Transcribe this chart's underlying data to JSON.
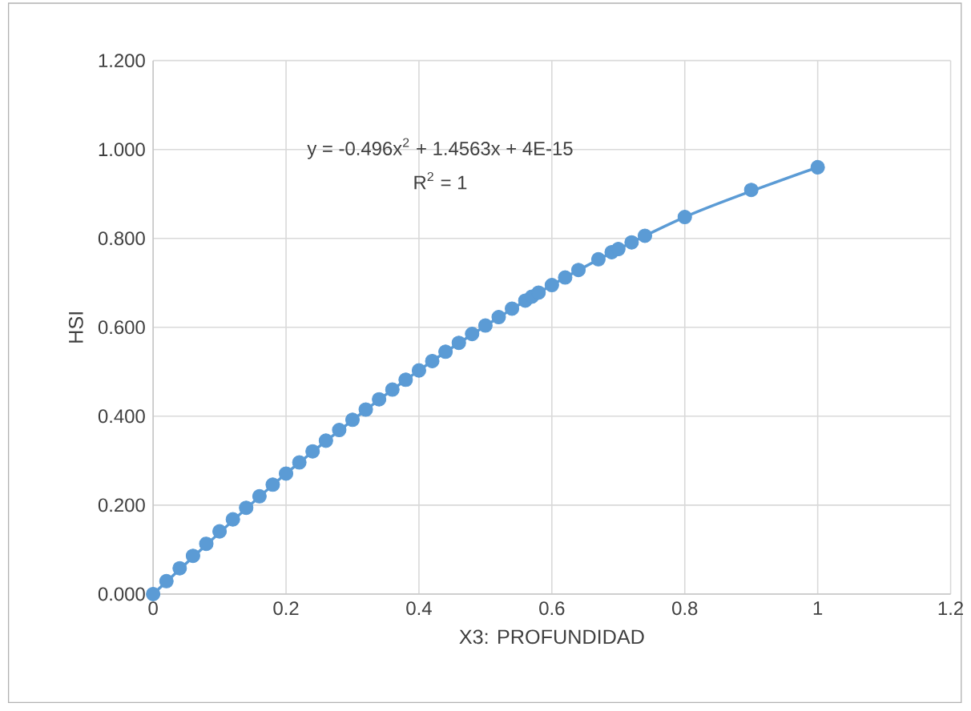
{
  "chart_data": {
    "type": "scatter",
    "xlabel": "X3: PROFUNDIDAD",
    "ylabel": "HSI",
    "xlim": [
      0,
      1.2
    ],
    "xticks": [
      0,
      0.2,
      0.4,
      0.6,
      0.8,
      1,
      1.2
    ],
    "ylim": [
      0,
      1.2
    ],
    "yticks": [
      {
        "value": 0,
        "label": "0.000"
      },
      {
        "value": 0.2,
        "label": "0.200"
      },
      {
        "value": 0.4,
        "label": "0.400"
      },
      {
        "value": 0.6,
        "label": "0.600"
      },
      {
        "value": 0.8,
        "label": "0.800"
      },
      {
        "value": 1,
        "label": "1.000"
      },
      {
        "value": 1.2,
        "label": "1.200"
      }
    ],
    "grid": true,
    "annotations": [
      "y = -0.496x$^{2}$ + 1.4563x + 4E-15",
      "R$^{2}$ = 1"
    ],
    "series": [
      {
        "color": "#5b9bd5",
        "marker": "circle",
        "x": [
          0,
          0.02,
          0.04,
          0.06,
          0.08,
          0.1,
          0.12,
          0.14,
          0.16,
          0.18,
          0.2,
          0.22,
          0.24,
          0.26,
          0.28,
          0.3,
          0.32,
          0.34,
          0.36,
          0.38,
          0.4,
          0.42,
          0.44,
          0.46,
          0.48,
          0.5,
          0.52,
          0.54,
          0.56,
          0.57,
          0.58,
          0.6,
          0.62,
          0.64,
          0.67,
          0.69,
          0.7,
          0.72,
          0.74,
          0.8,
          0.9,
          1
        ],
        "values": [
          0,
          0.029,
          0.058,
          0.086,
          0.113,
          0.141,
          0.168,
          0.194,
          0.22,
          0.246,
          0.271,
          0.296,
          0.321,
          0.345,
          0.369,
          0.392,
          0.415,
          0.438,
          0.46,
          0.482,
          0.503,
          0.524,
          0.545,
          0.565,
          0.585,
          0.604,
          0.623,
          0.642,
          0.66,
          0.669,
          0.678,
          0.695,
          0.712,
          0.729,
          0.753,
          0.769,
          0.776,
          0.791,
          0.806,
          0.848,
          0.909,
          0.96
        ]
      },
      {
        "type": "line",
        "color": "#5b9bd5",
        "x": [
          0,
          0.2,
          0.4,
          0.6,
          0.8,
          1
        ],
        "values": [
          0,
          0.271,
          0.503,
          0.695,
          0.848,
          0.96
        ]
      }
    ]
  }
}
